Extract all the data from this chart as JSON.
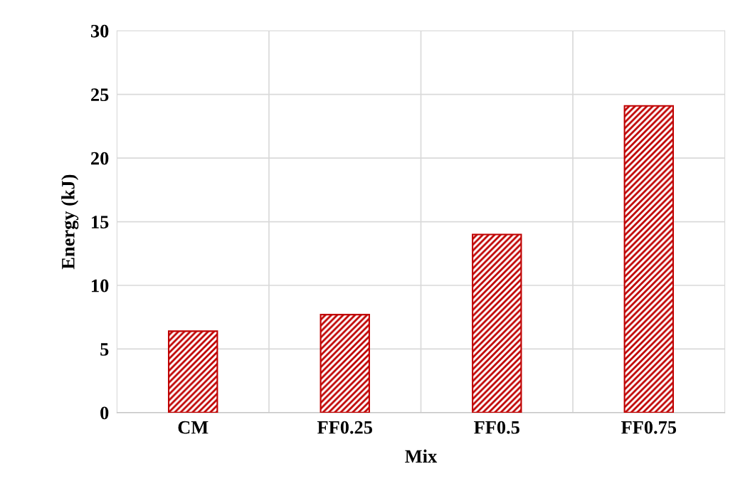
{
  "chart_data": {
    "type": "bar",
    "xlabel": "Mix",
    "ylabel": "Energy (kJ)",
    "categories": [
      "CM",
      "FF0.25",
      "FF0.5",
      "FF0.75"
    ],
    "values": [
      6.4,
      7.7,
      14.0,
      24.1
    ],
    "color": "#c00000",
    "ylim": [
      0,
      30
    ],
    "yticks": [
      0,
      5,
      10,
      15,
      20,
      25,
      30
    ],
    "grid": true
  }
}
